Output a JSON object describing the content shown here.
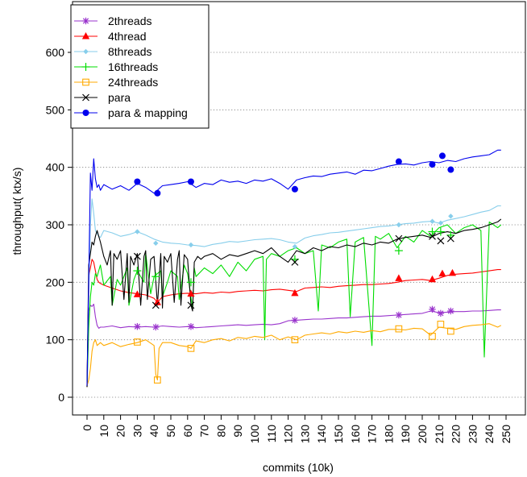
{
  "chart_data": {
    "type": "line",
    "title": "",
    "xlabel": "commits (10k)",
    "ylabel": "throughput( ktx/s)",
    "xlim": [
      -2,
      250
    ],
    "ylim": [
      0,
      650
    ],
    "x_ticks": [
      0,
      10,
      20,
      30,
      40,
      50,
      60,
      70,
      80,
      90,
      100,
      110,
      120,
      130,
      140,
      150,
      160,
      170,
      180,
      190,
      200,
      210,
      220,
      230,
      240,
      250
    ],
    "x_tick_labels": [
      "0",
      "10",
      "20",
      "30",
      "40",
      "50",
      "60",
      "70",
      "80",
      "90",
      "100",
      "110",
      "120",
      "130",
      "140",
      "150",
      "160",
      "170",
      "180",
      "190",
      "200",
      "210",
      "220",
      "230",
      "240",
      "250"
    ],
    "y_ticks": [
      0,
      100,
      200,
      300,
      400,
      500,
      600
    ],
    "y_tick_labels": [
      "0",
      "100",
      "200",
      "300",
      "400",
      "500",
      "600"
    ],
    "grid": "horizontal dotted",
    "legend_position": "top-left",
    "series": [
      {
        "name": "2threads",
        "color": "#9933cc",
        "marker": "asterisk",
        "x": [
          0,
          1,
          2,
          3,
          4,
          5,
          6,
          7,
          8,
          10,
          15,
          20,
          25,
          30,
          35,
          40,
          45,
          50,
          55,
          60,
          65,
          70,
          75,
          80,
          85,
          90,
          95,
          100,
          105,
          110,
          115,
          120,
          125,
          130,
          135,
          140,
          145,
          150,
          155,
          160,
          165,
          170,
          175,
          180,
          185,
          190,
          195,
          200,
          205,
          210,
          215,
          220,
          225,
          230,
          235,
          240,
          245,
          247
        ],
        "y": [
          18,
          150,
          160,
          158,
          162,
          140,
          125,
          120,
          122,
          122,
          124,
          121,
          123,
          122,
          123,
          122,
          124,
          123,
          122,
          123,
          121,
          122,
          123,
          124,
          125,
          126,
          125,
          126,
          127,
          126,
          128,
          133,
          134,
          135,
          136,
          136,
          137,
          138,
          138,
          139,
          140,
          141,
          141,
          142,
          143,
          144,
          145,
          146,
          150,
          147,
          148,
          149,
          149,
          150,
          150,
          151,
          152,
          152
        ],
        "markers_x": [
          30,
          41,
          62,
          124,
          186,
          206,
          211,
          217
        ],
        "markers_y": [
          123,
          122,
          123,
          134,
          143,
          153,
          146,
          150
        ]
      },
      {
        "name": "4thread",
        "color": "#ff0000",
        "marker": "filled-triangle",
        "x": [
          0,
          1,
          2,
          3,
          4,
          5,
          6,
          7,
          8,
          10,
          15,
          20,
          25,
          30,
          35,
          40,
          42,
          45,
          50,
          55,
          60,
          65,
          70,
          75,
          80,
          85,
          90,
          95,
          100,
          105,
          110,
          115,
          120,
          125,
          130,
          135,
          140,
          145,
          150,
          155,
          160,
          165,
          170,
          175,
          180,
          185,
          190,
          195,
          200,
          205,
          210,
          215,
          220,
          225,
          230,
          235,
          240,
          245,
          247
        ],
        "y": [
          18,
          210,
          225,
          240,
          235,
          220,
          205,
          200,
          198,
          195,
          190,
          185,
          182,
          180,
          178,
          172,
          165,
          175,
          178,
          180,
          181,
          180,
          182,
          181,
          183,
          182,
          184,
          185,
          186,
          185,
          187,
          188,
          186,
          184,
          190,
          191,
          192,
          191,
          193,
          194,
          195,
          196,
          196,
          197,
          198,
          200,
          203,
          204,
          205,
          203,
          207,
          212,
          214,
          215,
          216,
          218,
          220,
          222,
          222
        ],
        "markers_x": [
          30,
          42,
          62,
          124,
          186,
          206,
          212,
          218
        ],
        "markers_y": [
          179,
          165,
          180,
          181,
          207,
          205,
          215,
          216
        ]
      },
      {
        "name": "8threads",
        "color": "#87ceeb",
        "marker": "filled-diamond",
        "x": [
          0,
          1,
          2,
          3,
          4,
          5,
          6,
          7,
          8,
          10,
          15,
          20,
          25,
          30,
          35,
          40,
          45,
          50,
          55,
          60,
          65,
          70,
          75,
          80,
          85,
          90,
          95,
          100,
          105,
          110,
          115,
          120,
          125,
          130,
          135,
          140,
          145,
          150,
          155,
          160,
          165,
          170,
          175,
          180,
          185,
          190,
          195,
          200,
          205,
          210,
          215,
          220,
          225,
          230,
          235,
          240,
          245,
          247
        ],
        "y": [
          20,
          180,
          300,
          345,
          320,
          290,
          285,
          280,
          278,
          290,
          286,
          280,
          283,
          288,
          282,
          275,
          270,
          268,
          267,
          265,
          264,
          262,
          266,
          268,
          271,
          270,
          272,
          274,
          275,
          276,
          274,
          270,
          268,
          277,
          281,
          283,
          286,
          287,
          289,
          291,
          293,
          295,
          297,
          298,
          300,
          302,
          303,
          305,
          306,
          303,
          308,
          311,
          314,
          318,
          322,
          325,
          333,
          333
        ],
        "markers_x": [
          30,
          41,
          62,
          124,
          186,
          206,
          211,
          217
        ],
        "markers_y": [
          288,
          268,
          265,
          262,
          300,
          306,
          303,
          315
        ]
      },
      {
        "name": "16threads",
        "color": "#00dd00",
        "marker": "plus",
        "x": [
          0,
          1,
          2,
          3,
          4,
          5,
          6,
          8,
          10,
          14,
          15,
          18,
          20,
          24,
          25,
          28,
          30,
          34,
          35,
          38,
          40,
          44,
          45,
          48,
          50,
          54,
          55,
          58,
          60,
          63,
          64,
          65,
          70,
          75,
          80,
          85,
          90,
          95,
          100,
          105,
          106,
          107,
          110,
          115,
          120,
          125,
          130,
          135,
          138,
          140,
          145,
          150,
          155,
          157,
          160,
          165,
          170,
          172,
          175,
          180,
          185,
          190,
          195,
          200,
          205,
          210,
          215,
          220,
          225,
          230,
          235,
          237,
          240,
          245,
          247
        ],
        "y": [
          18,
          120,
          175,
          200,
          195,
          215,
          210,
          230,
          195,
          210,
          160,
          205,
          195,
          225,
          160,
          205,
          220,
          200,
          250,
          180,
          210,
          220,
          175,
          200,
          220,
          210,
          170,
          230,
          215,
          155,
          225,
          210,
          225,
          215,
          230,
          210,
          235,
          220,
          240,
          245,
          100,
          240,
          250,
          245,
          255,
          260,
          250,
          255,
          150,
          265,
          260,
          270,
          275,
          140,
          270,
          278,
          90,
          280,
          275,
          285,
          260,
          280,
          270,
          290,
          280,
          295,
          300,
          285,
          295,
          300,
          290,
          70,
          305,
          295,
          300
        ],
        "markers_x": [
          30,
          41,
          62,
          124,
          186,
          206,
          211,
          217
        ],
        "markers_y": [
          220,
          210,
          200,
          240,
          255,
          288,
          288,
          282
        ]
      },
      {
        "name": "24threads",
        "color": "#ffaa00",
        "marker": "open-square",
        "x": [
          0,
          1,
          2,
          3,
          4,
          5,
          6,
          8,
          10,
          15,
          20,
          25,
          30,
          35,
          40,
          41,
          42,
          43,
          45,
          50,
          55,
          60,
          62,
          65,
          70,
          75,
          80,
          85,
          90,
          95,
          100,
          105,
          110,
          115,
          120,
          125,
          130,
          135,
          140,
          145,
          150,
          155,
          160,
          165,
          170,
          175,
          180,
          185,
          190,
          195,
          200,
          205,
          210,
          215,
          220,
          225,
          230,
          235,
          240,
          245,
          247
        ],
        "y": [
          20,
          30,
          50,
          80,
          95,
          100,
          90,
          95,
          90,
          95,
          88,
          92,
          95,
          100,
          90,
          40,
          30,
          85,
          95,
          95,
          90,
          88,
          85,
          98,
          95,
          100,
          102,
          98,
          104,
          102,
          106,
          104,
          108,
          100,
          105,
          100,
          108,
          110,
          112,
          110,
          114,
          112,
          115,
          113,
          116,
          114,
          118,
          118,
          117,
          120,
          119,
          108,
          122,
          120,
          118,
          123,
          125,
          126,
          128,
          122,
          125
        ],
        "markers_x": [
          30,
          42,
          62,
          124,
          186,
          206,
          211,
          217
        ],
        "markers_y": [
          96,
          30,
          85,
          100,
          119,
          106,
          127,
          115
        ]
      },
      {
        "name": "para",
        "color": "#000000",
        "marker": "x-cross",
        "x": [
          0,
          1,
          2,
          3,
          4,
          5,
          6,
          8,
          10,
          12,
          14,
          15,
          16,
          18,
          20,
          22,
          24,
          25,
          26,
          28,
          30,
          32,
          34,
          35,
          36,
          38,
          40,
          42,
          44,
          45,
          46,
          48,
          50,
          52,
          54,
          55,
          56,
          58,
          60,
          62,
          63,
          64,
          66,
          68,
          70,
          75,
          80,
          85,
          90,
          95,
          100,
          105,
          110,
          115,
          120,
          125,
          130,
          135,
          140,
          145,
          150,
          155,
          160,
          165,
          170,
          175,
          180,
          185,
          190,
          195,
          200,
          205,
          210,
          215,
          220,
          225,
          230,
          235,
          240,
          245,
          247
        ],
        "y": [
          18,
          230,
          250,
          270,
          265,
          280,
          290,
          270,
          245,
          230,
          255,
          160,
          250,
          240,
          255,
          170,
          250,
          165,
          245,
          230,
          250,
          160,
          245,
          255,
          170,
          240,
          245,
          160,
          250,
          155,
          245,
          235,
          250,
          165,
          240,
          255,
          160,
          248,
          240,
          160,
          150,
          235,
          245,
          240,
          245,
          250,
          240,
          248,
          245,
          250,
          255,
          250,
          260,
          245,
          235,
          255,
          250,
          260,
          255,
          262,
          260,
          265,
          262,
          268,
          265,
          270,
          268,
          275,
          278,
          280,
          282,
          278,
          285,
          288,
          285,
          290,
          292,
          295,
          300,
          305,
          310
        ],
        "markers_x": [
          30,
          41,
          62,
          124,
          186,
          206,
          211,
          217
        ],
        "markers_y": [
          245,
          160,
          160,
          235,
          276,
          280,
          272,
          276
        ]
      },
      {
        "name": "para & mapping",
        "color": "#0000ee",
        "marker": "filled-circle",
        "x": [
          0,
          1,
          2,
          3,
          4,
          5,
          6,
          7,
          8,
          10,
          15,
          20,
          25,
          30,
          35,
          40,
          45,
          50,
          55,
          60,
          65,
          70,
          75,
          80,
          85,
          90,
          95,
          100,
          105,
          110,
          115,
          120,
          125,
          130,
          135,
          140,
          145,
          150,
          155,
          160,
          165,
          170,
          175,
          180,
          185,
          190,
          195,
          200,
          205,
          210,
          215,
          220,
          225,
          230,
          235,
          240,
          245,
          247
        ],
        "y": [
          20,
          200,
          390,
          360,
          415,
          380,
          365,
          370,
          360,
          370,
          362,
          368,
          360,
          372,
          365,
          355,
          368,
          370,
          372,
          375,
          365,
          372,
          370,
          378,
          374,
          376,
          372,
          378,
          376,
          380,
          372,
          362,
          378,
          382,
          385,
          384,
          388,
          390,
          392,
          388,
          395,
          394,
          398,
          402,
          405,
          406,
          404,
          408,
          410,
          408,
          412,
          410,
          415,
          418,
          420,
          422,
          430,
          430
        ],
        "markers_x": [
          30,
          42,
          62,
          124,
          186,
          206,
          212,
          217
        ],
        "markers_y": [
          375,
          355,
          375,
          362,
          410,
          405,
          420,
          396
        ]
      }
    ]
  }
}
